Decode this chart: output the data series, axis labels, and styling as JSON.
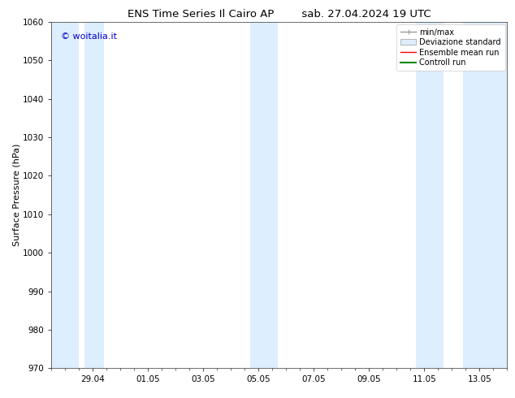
{
  "title_left": "ENS Time Series Il Cairo AP",
  "title_right": "sab. 27.04.2024 19 UTC",
  "ylabel": "Surface Pressure (hPa)",
  "ylim": [
    970,
    1060
  ],
  "yticks": [
    970,
    980,
    990,
    1000,
    1010,
    1020,
    1030,
    1040,
    1050,
    1060
  ],
  "xlim": [
    0.0,
    16.5
  ],
  "xtick_labels": [
    "29.04",
    "01.05",
    "03.05",
    "05.05",
    "07.05",
    "09.05",
    "11.05",
    "13.05"
  ],
  "xtick_positions": [
    1.5,
    3.5,
    5.5,
    7.5,
    9.5,
    11.5,
    13.5,
    15.5
  ],
  "shade_bands": [
    {
      "x_start": 0.0,
      "x_end": 1.0
    },
    {
      "x_start": 1.2,
      "x_end": 1.9
    },
    {
      "x_start": 7.2,
      "x_end": 8.2
    },
    {
      "x_start": 13.2,
      "x_end": 14.2
    },
    {
      "x_start": 14.9,
      "x_end": 16.5
    }
  ],
  "shade_color": "#ddeeff",
  "background_color": "#ffffff",
  "watermark_text": "© woitalia.it",
  "watermark_color": "#0000cc",
  "legend_items": [
    {
      "label": "min/max",
      "color": "#999999",
      "lw": 1
    },
    {
      "label": "Deviazione standard",
      "color": "#bbccdd",
      "lw": 6
    },
    {
      "label": "Ensemble mean run",
      "color": "#ff0000",
      "lw": 1
    },
    {
      "label": "Controll run",
      "color": "#008800",
      "lw": 1.5
    }
  ],
  "title_fontsize": 9.5,
  "tick_fontsize": 7.5,
  "ylabel_fontsize": 8,
  "watermark_fontsize": 8,
  "legend_fontsize": 7
}
